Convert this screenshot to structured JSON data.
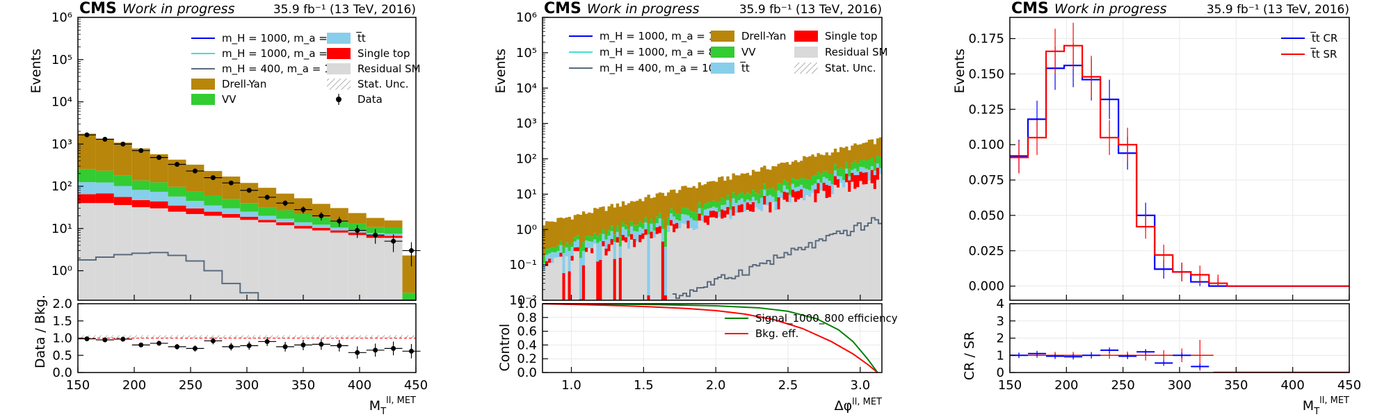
{
  "header": {
    "experiment": "CMS",
    "status": "Work in progress",
    "lumi": "35.9 fb⁻¹ (13 TeV, 2016)"
  },
  "colors": {
    "drell_yan": "#b8860b",
    "vv": "#33cc33",
    "ttbar": "#87ceeb",
    "single_top": "#ff0000",
    "residual_sm": "#d9d9d9",
    "sig_1000_100": "#0000ff",
    "sig_1000_800": "#40e0d0",
    "sig_400_100": "#5a6a7e",
    "cr": "#0000ff",
    "sr": "#ff0000",
    "sig_eff": "#008000",
    "bkg_eff": "#ff0000"
  },
  "chart_data": [
    {
      "id": "left",
      "type": "bar",
      "stacked": true,
      "log_y": true,
      "ylabel": "Events",
      "xlabel": "M_T^{ll, MET}",
      "ylim": [
        0.2,
        1000000
      ],
      "xlim": [
        150,
        450
      ],
      "x_ticks": [
        "150",
        "200",
        "250",
        "300",
        "350",
        "400",
        "450"
      ],
      "y_ticks": [
        "10⁰",
        "10¹",
        "10²",
        "10³",
        "10⁴",
        "10⁵",
        "10⁶"
      ],
      "bin_edges": [
        150,
        166,
        182,
        198,
        214,
        230,
        246,
        262,
        278,
        294,
        310,
        326,
        342,
        358,
        374,
        390,
        406,
        422,
        438,
        450
      ],
      "series": [
        {
          "name": "Residual SM",
          "values": [
            40,
            40,
            36,
            32,
            30,
            25,
            22,
            20,
            18,
            16,
            14,
            12,
            10,
            9,
            8,
            7,
            6,
            6,
            0
          ]
        },
        {
          "name": "Single top",
          "values": [
            25,
            28,
            20,
            15,
            14,
            10,
            8,
            5,
            4,
            3,
            2,
            2,
            1.5,
            1.3,
            1,
            1,
            0.8,
            0.7,
            0
          ]
        },
        {
          "name": "t̅t",
          "values": [
            60,
            55,
            45,
            35,
            30,
            22,
            15,
            10,
            8,
            6,
            4,
            3,
            2.5,
            2,
            1.5,
            1.2,
            1,
            0.8,
            0
          ]
        },
        {
          "name": "VV",
          "values": [
            130,
            110,
            80,
            55,
            50,
            40,
            30,
            25,
            20,
            15,
            12,
            10,
            8,
            6,
            5,
            4,
            3,
            3,
            0.3
          ]
        },
        {
          "name": "Drell-Yan",
          "values": [
            1500,
            1100,
            900,
            650,
            450,
            330,
            250,
            170,
            120,
            80,
            60,
            40,
            30,
            20,
            15,
            10,
            7,
            5,
            2
          ]
        }
      ],
      "signals": [
        {
          "name": "m_H = 1000, m_a = 100",
          "values": []
        },
        {
          "name": "m_H = 1000, m_a = 800",
          "values": []
        },
        {
          "name": "m_H = 400, m_a = 100",
          "values": [
            1.8,
            2.1,
            2.4,
            2.6,
            2.7,
            2.3,
            1.7,
            1.0,
            0.5,
            0.3,
            0.2,
            0.2,
            0.2,
            0.2,
            0.2,
            0.2,
            0.2,
            0.2,
            0.2
          ]
        }
      ],
      "data": {
        "name": "Data",
        "x": [
          158,
          174,
          190,
          206,
          222,
          238,
          254,
          270,
          286,
          302,
          318,
          334,
          350,
          366,
          382,
          398,
          414,
          430,
          446
        ],
        "y": [
          1650,
          1300,
          1000,
          700,
          480,
          330,
          230,
          160,
          120,
          80,
          55,
          40,
          28,
          20,
          15,
          9,
          7,
          5,
          3
        ]
      },
      "legend": [
        "m_H = 1000, m_a = 100",
        "t̅t",
        "m_H = 1000, m_a = 800",
        "Single top",
        "m_H = 400, m_a = 100",
        "Residual SM",
        "Drell-Yan",
        "Stat. Unc.",
        "VV",
        "Data"
      ],
      "ratio": {
        "ylabel": "Data / Bkg.",
        "ylim": [
          0.0,
          2.0
        ],
        "y_ticks": [
          "0.0",
          "0.5",
          "1.0",
          "1.5",
          "2.0"
        ],
        "x": [
          158,
          174,
          190,
          206,
          222,
          238,
          254,
          270,
          286,
          302,
          318,
          334,
          350,
          366,
          382,
          398,
          414,
          430,
          446
        ],
        "y": [
          0.98,
          0.95,
          0.97,
          0.8,
          0.85,
          0.75,
          0.7,
          0.92,
          0.75,
          0.78,
          0.9,
          0.75,
          0.8,
          0.82,
          0.78,
          0.58,
          0.65,
          0.7,
          0.62
        ]
      }
    },
    {
      "id": "middle",
      "type": "bar",
      "stacked": true,
      "log_y": true,
      "ylabel": "Events",
      "xlabel": "Δφ^{ll, MET}",
      "ylim": [
        0.01,
        1000000
      ],
      "xlim": [
        0.8,
        3.15
      ],
      "x_ticks": [
        "1.0",
        "1.5",
        "2.0",
        "2.5",
        "3.0"
      ],
      "y_ticks": [
        "10⁻²",
        "10⁻¹",
        "10⁰",
        "10¹",
        "10²",
        "10³",
        "10⁴",
        "10⁵",
        "10⁶"
      ],
      "legend": [
        "m_H = 1000, m_a = 100",
        "Drell-Yan",
        "Single top",
        "m_H = 1000, m_a = 800",
        "VV",
        "Residual SM",
        "m_H = 400, m_a = 100",
        "t̅t",
        "Stat. Unc."
      ],
      "total_trend": {
        "x": [
          0.8,
          3.15
        ],
        "y": [
          1.5,
          350
        ]
      },
      "signal_400_100_trend": {
        "x": [
          1.7,
          3.15
        ],
        "y": [
          0.012,
          2
        ]
      },
      "ratio": {
        "ylabel": "Control",
        "ylim": [
          0.0,
          1.0
        ],
        "y_ticks": [
          "0.0",
          "0.2",
          "0.4",
          "0.6",
          "0.8",
          "1.0"
        ],
        "lines": [
          {
            "name": "Signal_1000_800 efficiency",
            "x": [
              0.8,
              1.5,
              2.0,
              2.3,
              2.5,
              2.7,
              2.85,
              2.95,
              3.05,
              3.12
            ],
            "y": [
              1.0,
              0.99,
              0.97,
              0.94,
              0.89,
              0.78,
              0.62,
              0.45,
              0.2,
              0.0
            ]
          },
          {
            "name": "Bkg. eff.",
            "x": [
              0.8,
              1.2,
              1.5,
              1.8,
              2.0,
              2.2,
              2.4,
              2.6,
              2.8,
              2.95,
              3.05,
              3.12
            ],
            "y": [
              1.0,
              0.98,
              0.96,
              0.93,
              0.9,
              0.85,
              0.77,
              0.64,
              0.45,
              0.27,
              0.12,
              0.0
            ]
          }
        ]
      }
    },
    {
      "id": "right",
      "type": "line",
      "step": true,
      "ylabel": "Events",
      "xlabel": "M_T^{ll, MET}",
      "ylim": [
        -0.01,
        0.19
      ],
      "xlim": [
        150,
        450
      ],
      "x_ticks": [
        "150",
        "200",
        "250",
        "300",
        "350",
        "400",
        "450"
      ],
      "y_ticks": [
        "0.000",
        "0.025",
        "0.050",
        "0.075",
        "0.100",
        "0.125",
        "0.150",
        "0.175"
      ],
      "bin_edges": [
        150,
        166,
        182,
        198,
        214,
        230,
        246,
        262,
        278,
        294,
        310,
        326,
        342,
        358,
        374,
        390,
        406,
        422,
        438,
        450
      ],
      "series": [
        {
          "name": "t̅t CR",
          "values": [
            0.092,
            0.118,
            0.154,
            0.156,
            0.146,
            0.132,
            0.094,
            0.05,
            0.012,
            0.01,
            0.003,
            0.0,
            0,
            0,
            0,
            0,
            0,
            0,
            0
          ]
        },
        {
          "name": "t̅t SR",
          "values": [
            0.091,
            0.105,
            0.166,
            0.17,
            0.148,
            0.105,
            0.1,
            0.042,
            0.022,
            0.01,
            0.008,
            0.002,
            0,
            0,
            0,
            0,
            0,
            0,
            0
          ]
        }
      ],
      "legend": [
        "t̅t CR",
        "t̅t SR"
      ],
      "ratio": {
        "ylabel": "CR / SR",
        "ylim": [
          0,
          4
        ],
        "y_ticks": [
          "0",
          "1",
          "2",
          "3",
          "4"
        ],
        "cr_points": {
          "x": [
            158,
            174,
            190,
            206,
            222,
            238,
            254,
            270,
            286,
            302,
            318
          ],
          "y": [
            1.0,
            1.1,
            0.95,
            0.92,
            1.0,
            1.3,
            0.95,
            1.2,
            0.55,
            1.0,
            0.35
          ]
        }
      }
    }
  ]
}
